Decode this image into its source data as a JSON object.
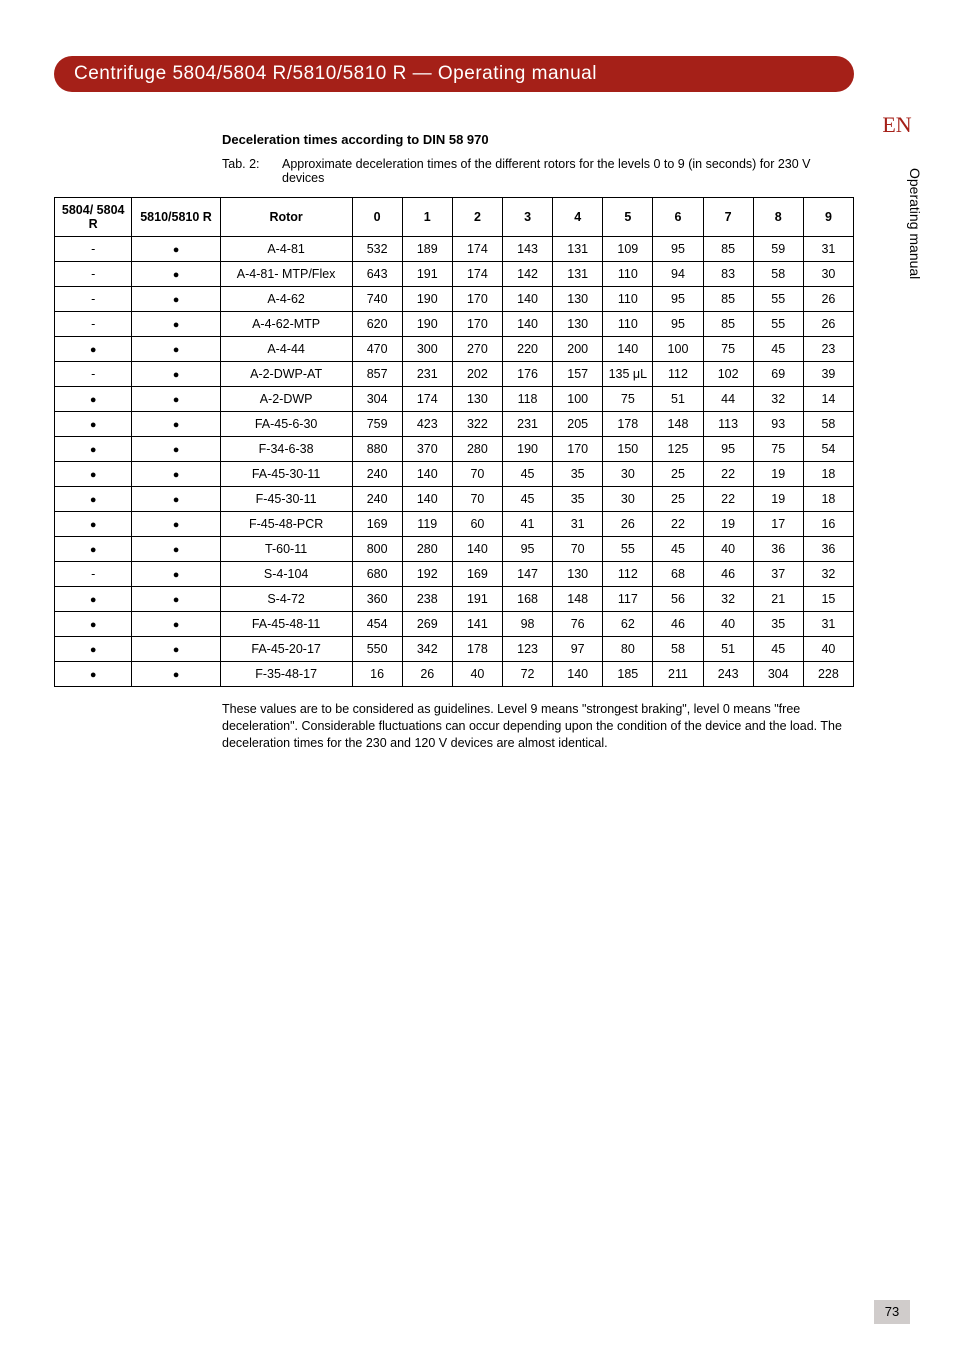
{
  "banner_title": "Centrifuge 5804/5804 R/5810/5810 R  —  Operating manual",
  "lang_tab": "EN",
  "side_label": "Operating manual",
  "section_heading": "Deceleration times according to DIN 58 970",
  "tab_label": "Tab. 2:",
  "tab_caption": "Approximate deceleration times of the different rotors for the levels 0 to 9 (in seconds) for 230 V devices",
  "columns": [
    "5804/ 5804 R",
    "5810/5810 R",
    "Rotor",
    "0",
    "1",
    "2",
    "3",
    "4",
    "5",
    "6",
    "7",
    "8",
    "9"
  ],
  "rows": [
    {
      "a": "-",
      "b": "dot",
      "rotor": "A-4-81",
      "v": [
        "532",
        "189",
        "174",
        "143",
        "131",
        "109",
        "95",
        "85",
        "59",
        "31"
      ]
    },
    {
      "a": "-",
      "b": "dot",
      "rotor": "A-4-81- MTP/Flex",
      "v": [
        "643",
        "191",
        "174",
        "142",
        "131",
        "110",
        "94",
        "83",
        "58",
        "30"
      ]
    },
    {
      "a": "-",
      "b": "dot",
      "rotor": "A-4-62",
      "v": [
        "740",
        "190",
        "170",
        "140",
        "130",
        "110",
        "95",
        "85",
        "55",
        "26"
      ]
    },
    {
      "a": "-",
      "b": "dot",
      "rotor": "A-4-62-MTP",
      "v": [
        "620",
        "190",
        "170",
        "140",
        "130",
        "110",
        "95",
        "85",
        "55",
        "26"
      ]
    },
    {
      "a": "dot",
      "b": "dot",
      "rotor": "A-4-44",
      "v": [
        "470",
        "300",
        "270",
        "220",
        "200",
        "140",
        "100",
        "75",
        "45",
        "23"
      ]
    },
    {
      "a": "-",
      "b": "dot",
      "rotor": "A-2-DWP-AT",
      "v": [
        "857",
        "231",
        "202",
        "176",
        "157",
        "135 μL",
        "112",
        "102",
        "69",
        "39"
      ]
    },
    {
      "a": "dot",
      "b": "dot",
      "rotor": "A-2-DWP",
      "v": [
        "304",
        "174",
        "130",
        "118",
        "100",
        "75",
        "51",
        "44",
        "32",
        "14"
      ]
    },
    {
      "a": "dot",
      "b": "dot",
      "rotor": "FA-45-6-30",
      "v": [
        "759",
        "423",
        "322",
        "231",
        "205",
        "178",
        "148",
        "113",
        "93",
        "58"
      ]
    },
    {
      "a": "dot",
      "b": "dot",
      "rotor": "F-34-6-38",
      "v": [
        "880",
        "370",
        "280",
        "190",
        "170",
        "150",
        "125",
        "95",
        "75",
        "54"
      ]
    },
    {
      "a": "dot",
      "b": "dot",
      "rotor": "FA-45-30-11",
      "v": [
        "240",
        "140",
        "70",
        "45",
        "35",
        "30",
        "25",
        "22",
        "19",
        "18"
      ]
    },
    {
      "a": "dot",
      "b": "dot",
      "rotor": "F-45-30-11",
      "v": [
        "240",
        "140",
        "70",
        "45",
        "35",
        "30",
        "25",
        "22",
        "19",
        "18"
      ]
    },
    {
      "a": "dot",
      "b": "dot",
      "rotor": "F-45-48-PCR",
      "v": [
        "169",
        "119",
        "60",
        "41",
        "31",
        "26",
        "22",
        "19",
        "17",
        "16"
      ]
    },
    {
      "a": "dot",
      "b": "dot",
      "rotor": "T-60-11",
      "v": [
        "800",
        "280",
        "140",
        "95",
        "70",
        "55",
        "45",
        "40",
        "36",
        "36"
      ]
    },
    {
      "a": "-",
      "b": "dot",
      "rotor": "S-4-104",
      "v": [
        "680",
        "192",
        "169",
        "147",
        "130",
        "112",
        "68",
        "46",
        "37",
        "32"
      ]
    },
    {
      "a": "dot",
      "b": "dot",
      "rotor": "S-4-72",
      "v": [
        "360",
        "238",
        "191",
        "168",
        "148",
        "117",
        "56",
        "32",
        "21",
        "15"
      ]
    },
    {
      "a": "dot",
      "b": "dot",
      "rotor": "FA-45-48-11",
      "v": [
        "454",
        "269",
        "141",
        "98",
        "76",
        "62",
        "46",
        "40",
        "35",
        "31"
      ]
    },
    {
      "a": "dot",
      "b": "dot",
      "rotor": "FA-45-20-17",
      "v": [
        "550",
        "342",
        "178",
        "123",
        "97",
        "80",
        "58",
        "51",
        "45",
        "40"
      ]
    },
    {
      "a": "dot",
      "b": "dot",
      "rotor": "F-35-48-17",
      "v": [
        "16",
        "26",
        "40",
        "72",
        "140",
        "185",
        "211",
        "243",
        "304",
        "228"
      ]
    }
  ],
  "footnote": "These values are to be considered as guidelines. Level 9 means \"strongest braking\", level 0 means \"free deceleration\". Considerable fluctuations can occur depending upon the condition of the device and the load. The deceleration times for the 230 and 120 V devices are almost identical.",
  "page_number": "73"
}
